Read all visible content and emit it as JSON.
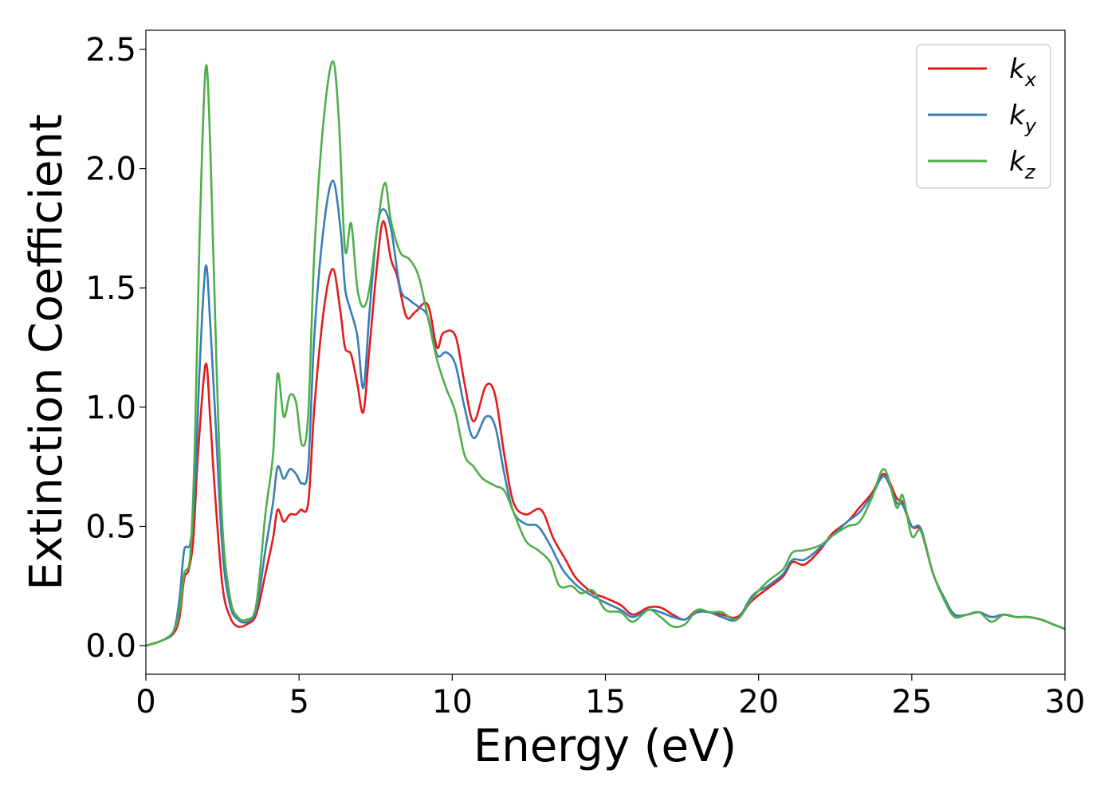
{
  "chart_data": {
    "type": "line",
    "xlabel": "Energy (eV)",
    "ylabel": "Extinction Coefficient",
    "xlim": [
      0,
      30
    ],
    "ylim": [
      -0.12,
      2.58
    ],
    "xticks": [
      "0",
      "5",
      "10",
      "15",
      "20",
      "25",
      "30"
    ],
    "yticks": [
      "0.0",
      "0.5",
      "1.0",
      "1.5",
      "2.0",
      "2.5"
    ],
    "grid": false,
    "legend_position": "top-right",
    "series": [
      {
        "name": "k",
        "subscript": "x",
        "color": "#e41a1c",
        "points": [
          [
            0,
            0
          ],
          [
            0.5,
            0.02
          ],
          [
            0.9,
            0.05
          ],
          [
            1.1,
            0.12
          ],
          [
            1.25,
            0.28
          ],
          [
            1.4,
            0.32
          ],
          [
            1.55,
            0.45
          ],
          [
            1.7,
            0.8
          ],
          [
            1.95,
            1.18
          ],
          [
            2.1,
            0.95
          ],
          [
            2.25,
            0.65
          ],
          [
            2.5,
            0.25
          ],
          [
            2.75,
            0.12
          ],
          [
            3.0,
            0.08
          ],
          [
            3.3,
            0.09
          ],
          [
            3.6,
            0.13
          ],
          [
            3.9,
            0.3
          ],
          [
            4.15,
            0.45
          ],
          [
            4.3,
            0.57
          ],
          [
            4.5,
            0.52
          ],
          [
            4.7,
            0.55
          ],
          [
            4.9,
            0.55
          ],
          [
            5.05,
            0.57
          ],
          [
            5.3,
            0.6
          ],
          [
            5.5,
            1.0
          ],
          [
            5.8,
            1.4
          ],
          [
            6.1,
            1.58
          ],
          [
            6.35,
            1.4
          ],
          [
            6.5,
            1.25
          ],
          [
            6.7,
            1.22
          ],
          [
            6.9,
            1.1
          ],
          [
            7.1,
            0.98
          ],
          [
            7.3,
            1.25
          ],
          [
            7.55,
            1.6
          ],
          [
            7.75,
            1.78
          ],
          [
            8.0,
            1.62
          ],
          [
            8.2,
            1.55
          ],
          [
            8.5,
            1.38
          ],
          [
            8.8,
            1.4
          ],
          [
            9.2,
            1.43
          ],
          [
            9.5,
            1.25
          ],
          [
            9.7,
            1.31
          ],
          [
            10.1,
            1.3
          ],
          [
            10.4,
            1.1
          ],
          [
            10.7,
            0.94
          ],
          [
            11.1,
            1.09
          ],
          [
            11.4,
            1.05
          ],
          [
            11.7,
            0.8
          ],
          [
            12.0,
            0.6
          ],
          [
            12.4,
            0.55
          ],
          [
            12.9,
            0.57
          ],
          [
            13.3,
            0.45
          ],
          [
            13.7,
            0.36
          ],
          [
            14.0,
            0.29
          ],
          [
            14.3,
            0.25
          ],
          [
            14.6,
            0.22
          ],
          [
            15.0,
            0.2
          ],
          [
            15.5,
            0.17
          ],
          [
            15.9,
            0.13
          ],
          [
            16.4,
            0.16
          ],
          [
            16.8,
            0.16
          ],
          [
            17.2,
            0.13
          ],
          [
            17.6,
            0.11
          ],
          [
            18.0,
            0.15
          ],
          [
            18.4,
            0.14
          ],
          [
            18.8,
            0.13
          ],
          [
            19.3,
            0.12
          ],
          [
            19.8,
            0.19
          ],
          [
            20.3,
            0.24
          ],
          [
            20.8,
            0.29
          ],
          [
            21.1,
            0.35
          ],
          [
            21.5,
            0.34
          ],
          [
            22.0,
            0.4
          ],
          [
            22.4,
            0.47
          ],
          [
            22.9,
            0.52
          ],
          [
            23.3,
            0.58
          ],
          [
            23.7,
            0.64
          ],
          [
            24.1,
            0.72
          ],
          [
            24.5,
            0.62
          ],
          [
            24.7,
            0.6
          ],
          [
            25.0,
            0.5
          ],
          [
            25.3,
            0.48
          ],
          [
            25.7,
            0.3
          ],
          [
            26.1,
            0.19
          ],
          [
            26.4,
            0.13
          ],
          [
            26.8,
            0.13
          ],
          [
            27.2,
            0.14
          ],
          [
            27.6,
            0.12
          ],
          [
            28.0,
            0.13
          ],
          [
            28.4,
            0.12
          ],
          [
            28.8,
            0.12
          ],
          [
            29.2,
            0.11
          ],
          [
            29.6,
            0.09
          ],
          [
            30.0,
            0.07
          ]
        ]
      },
      {
        "name": "k",
        "subscript": "y",
        "color": "#377eb8",
        "points": [
          [
            0,
            0
          ],
          [
            0.5,
            0.02
          ],
          [
            0.9,
            0.06
          ],
          [
            1.1,
            0.2
          ],
          [
            1.25,
            0.4
          ],
          [
            1.45,
            0.43
          ],
          [
            1.6,
            0.65
          ],
          [
            1.75,
            1.15
          ],
          [
            1.95,
            1.59
          ],
          [
            2.1,
            1.35
          ],
          [
            2.25,
            1.0
          ],
          [
            2.5,
            0.4
          ],
          [
            2.75,
            0.17
          ],
          [
            3.0,
            0.11
          ],
          [
            3.3,
            0.1
          ],
          [
            3.6,
            0.15
          ],
          [
            3.9,
            0.4
          ],
          [
            4.15,
            0.6
          ],
          [
            4.3,
            0.75
          ],
          [
            4.5,
            0.7
          ],
          [
            4.7,
            0.74
          ],
          [
            4.9,
            0.72
          ],
          [
            5.1,
            0.68
          ],
          [
            5.3,
            0.75
          ],
          [
            5.5,
            1.3
          ],
          [
            5.8,
            1.75
          ],
          [
            6.1,
            1.95
          ],
          [
            6.35,
            1.75
          ],
          [
            6.5,
            1.5
          ],
          [
            6.65,
            1.42
          ],
          [
            6.9,
            1.3
          ],
          [
            7.1,
            1.08
          ],
          [
            7.3,
            1.4
          ],
          [
            7.55,
            1.75
          ],
          [
            7.75,
            1.83
          ],
          [
            8.0,
            1.75
          ],
          [
            8.3,
            1.5
          ],
          [
            8.6,
            1.45
          ],
          [
            8.9,
            1.42
          ],
          [
            9.2,
            1.38
          ],
          [
            9.5,
            1.22
          ],
          [
            9.8,
            1.23
          ],
          [
            10.1,
            1.18
          ],
          [
            10.4,
            1.0
          ],
          [
            10.7,
            0.87
          ],
          [
            11.1,
            0.96
          ],
          [
            11.4,
            0.92
          ],
          [
            11.7,
            0.72
          ],
          [
            12.0,
            0.56
          ],
          [
            12.4,
            0.51
          ],
          [
            12.8,
            0.5
          ],
          [
            13.2,
            0.42
          ],
          [
            13.6,
            0.32
          ],
          [
            14.0,
            0.26
          ],
          [
            14.3,
            0.23
          ],
          [
            14.7,
            0.2
          ],
          [
            15.0,
            0.18
          ],
          [
            15.5,
            0.15
          ],
          [
            15.9,
            0.12
          ],
          [
            16.4,
            0.15
          ],
          [
            16.8,
            0.14
          ],
          [
            17.2,
            0.12
          ],
          [
            17.6,
            0.11
          ],
          [
            18.0,
            0.14
          ],
          [
            18.4,
            0.14
          ],
          [
            18.8,
            0.12
          ],
          [
            19.3,
            0.11
          ],
          [
            19.8,
            0.21
          ],
          [
            20.3,
            0.25
          ],
          [
            20.8,
            0.3
          ],
          [
            21.1,
            0.36
          ],
          [
            21.5,
            0.36
          ],
          [
            22.0,
            0.41
          ],
          [
            22.4,
            0.46
          ],
          [
            22.9,
            0.52
          ],
          [
            23.3,
            0.56
          ],
          [
            23.7,
            0.63
          ],
          [
            24.1,
            0.71
          ],
          [
            24.5,
            0.6
          ],
          [
            24.7,
            0.59
          ],
          [
            25.0,
            0.5
          ],
          [
            25.3,
            0.49
          ],
          [
            25.7,
            0.3
          ],
          [
            26.1,
            0.19
          ],
          [
            26.4,
            0.13
          ],
          [
            26.8,
            0.13
          ],
          [
            27.2,
            0.14
          ],
          [
            27.6,
            0.12
          ],
          [
            28.0,
            0.13
          ],
          [
            28.4,
            0.12
          ],
          [
            28.8,
            0.12
          ],
          [
            29.2,
            0.11
          ],
          [
            29.6,
            0.09
          ],
          [
            30.0,
            0.07
          ]
        ]
      },
      {
        "name": "k",
        "subscript": "z",
        "color": "#4daf4a",
        "points": [
          [
            0,
            0
          ],
          [
            0.5,
            0.02
          ],
          [
            0.9,
            0.06
          ],
          [
            1.1,
            0.15
          ],
          [
            1.25,
            0.3
          ],
          [
            1.45,
            0.38
          ],
          [
            1.6,
            0.85
          ],
          [
            1.75,
            1.7
          ],
          [
            1.95,
            2.42
          ],
          [
            2.1,
            2.1
          ],
          [
            2.3,
            1.2
          ],
          [
            2.5,
            0.5
          ],
          [
            2.75,
            0.2
          ],
          [
            3.0,
            0.12
          ],
          [
            3.3,
            0.11
          ],
          [
            3.6,
            0.17
          ],
          [
            3.9,
            0.55
          ],
          [
            4.15,
            0.8
          ],
          [
            4.3,
            1.14
          ],
          [
            4.5,
            0.96
          ],
          [
            4.7,
            1.05
          ],
          [
            4.9,
            1.02
          ],
          [
            5.1,
            0.84
          ],
          [
            5.3,
            0.97
          ],
          [
            5.5,
            1.65
          ],
          [
            5.8,
            2.2
          ],
          [
            6.1,
            2.45
          ],
          [
            6.3,
            2.2
          ],
          [
            6.5,
            1.66
          ],
          [
            6.7,
            1.77
          ],
          [
            6.9,
            1.5
          ],
          [
            7.1,
            1.42
          ],
          [
            7.3,
            1.5
          ],
          [
            7.55,
            1.75
          ],
          [
            7.8,
            1.94
          ],
          [
            8.0,
            1.78
          ],
          [
            8.3,
            1.65
          ],
          [
            8.6,
            1.62
          ],
          [
            8.9,
            1.55
          ],
          [
            9.2,
            1.38
          ],
          [
            9.5,
            1.2
          ],
          [
            9.8,
            1.08
          ],
          [
            10.1,
            0.98
          ],
          [
            10.4,
            0.8
          ],
          [
            10.7,
            0.75
          ],
          [
            11.0,
            0.7
          ],
          [
            11.4,
            0.67
          ],
          [
            11.7,
            0.65
          ],
          [
            12.0,
            0.56
          ],
          [
            12.4,
            0.44
          ],
          [
            12.8,
            0.4
          ],
          [
            13.2,
            0.35
          ],
          [
            13.5,
            0.25
          ],
          [
            13.9,
            0.25
          ],
          [
            14.2,
            0.22
          ],
          [
            14.6,
            0.23
          ],
          [
            15.0,
            0.15
          ],
          [
            15.5,
            0.14
          ],
          [
            15.9,
            0.1
          ],
          [
            16.4,
            0.15
          ],
          [
            16.8,
            0.12
          ],
          [
            17.2,
            0.08
          ],
          [
            17.6,
            0.09
          ],
          [
            18.0,
            0.15
          ],
          [
            18.4,
            0.14
          ],
          [
            18.8,
            0.14
          ],
          [
            19.3,
            0.11
          ],
          [
            19.8,
            0.2
          ],
          [
            20.3,
            0.27
          ],
          [
            20.8,
            0.32
          ],
          [
            21.1,
            0.39
          ],
          [
            21.5,
            0.4
          ],
          [
            22.0,
            0.42
          ],
          [
            22.4,
            0.46
          ],
          [
            22.9,
            0.5
          ],
          [
            23.3,
            0.52
          ],
          [
            23.7,
            0.62
          ],
          [
            24.1,
            0.74
          ],
          [
            24.5,
            0.58
          ],
          [
            24.7,
            0.63
          ],
          [
            25.0,
            0.46
          ],
          [
            25.3,
            0.48
          ],
          [
            25.7,
            0.3
          ],
          [
            26.1,
            0.18
          ],
          [
            26.4,
            0.12
          ],
          [
            26.8,
            0.13
          ],
          [
            27.2,
            0.14
          ],
          [
            27.6,
            0.1
          ],
          [
            28.0,
            0.13
          ],
          [
            28.4,
            0.12
          ],
          [
            28.8,
            0.12
          ],
          [
            29.2,
            0.11
          ],
          [
            29.6,
            0.09
          ],
          [
            30.0,
            0.07
          ]
        ]
      }
    ]
  }
}
